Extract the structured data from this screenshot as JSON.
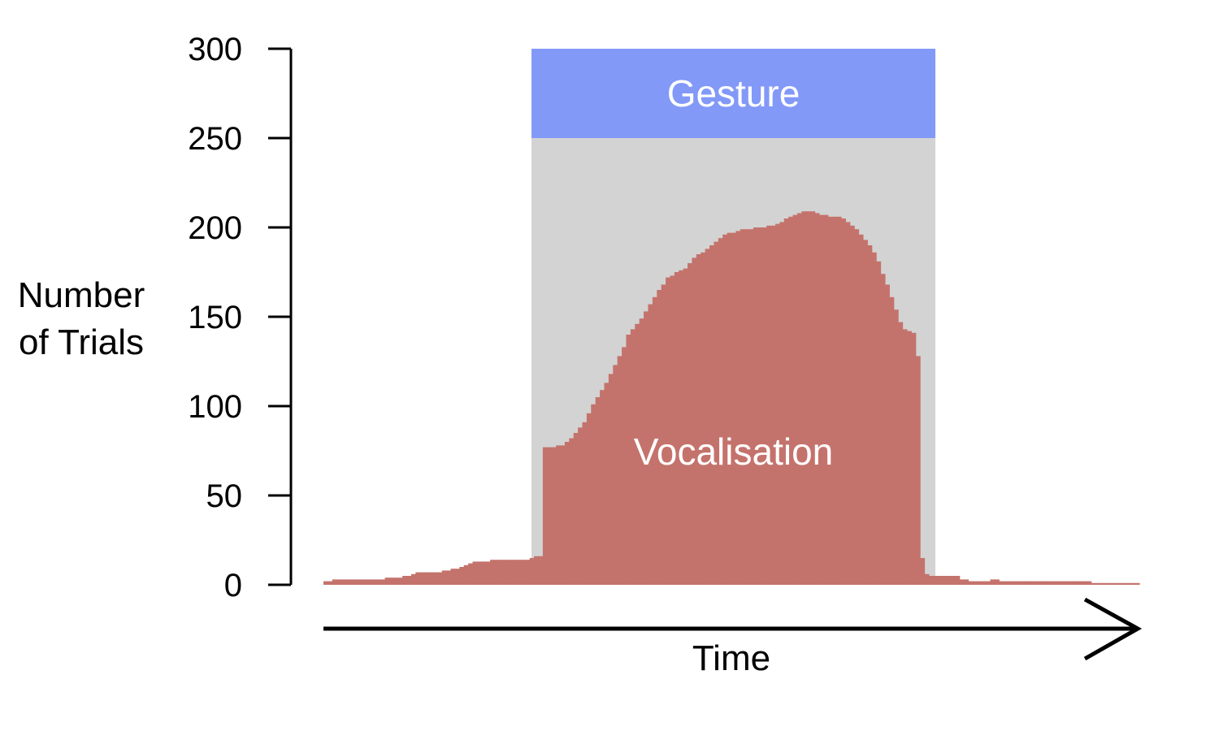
{
  "chart_data": {
    "type": "area",
    "ylabel": [
      "Number",
      "of Trials"
    ],
    "xlabel": "Time",
    "ylim": [
      0,
      300
    ],
    "yticks": [
      0,
      50,
      100,
      150,
      200,
      250,
      300
    ],
    "grid": false,
    "legend": "none",
    "regions": [
      {
        "name": "Gesture",
        "x_start": 0.255,
        "x_end": 0.75,
        "y_from": 250,
        "y_to": 300,
        "color": "#8299f8"
      },
      {
        "name": "",
        "x_start": 0.255,
        "x_end": 0.75,
        "y_from": 0,
        "y_to": 250,
        "color": "#d3d3d3"
      }
    ],
    "series": [
      {
        "name": "Vocalisation",
        "color": "#c4736c",
        "x_unit": "fraction of time window",
        "values": [
          2,
          2,
          3,
          3,
          3,
          3,
          3,
          3,
          3,
          3,
          3,
          3,
          3,
          3,
          4,
          4,
          4,
          4,
          5,
          5,
          6,
          7,
          7,
          7,
          7,
          7,
          7,
          8,
          8,
          9,
          9,
          10,
          11,
          12,
          13,
          13,
          13,
          13,
          14,
          14,
          14,
          14,
          14,
          14,
          14,
          14,
          14,
          15,
          16,
          16,
          77,
          77,
          77,
          78,
          78,
          80,
          82,
          85,
          88,
          91,
          96,
          101,
          105,
          109,
          113,
          118,
          123,
          128,
          133,
          140,
          143,
          146,
          149,
          153,
          157,
          161,
          165,
          168,
          172,
          173,
          175,
          176,
          177,
          180,
          183,
          185,
          186,
          188,
          190,
          192,
          194,
          196,
          197,
          197,
          198,
          199,
          199,
          199,
          200,
          200,
          200,
          201,
          201,
          202,
          203,
          205,
          206,
          207,
          208,
          209,
          209,
          209,
          208,
          207,
          207,
          206,
          206,
          206,
          205,
          203,
          201,
          199,
          196,
          193,
          190,
          186,
          181,
          174,
          168,
          161,
          154,
          147,
          143,
          142,
          141,
          128,
          15,
          6,
          5,
          5,
          5,
          5,
          5,
          5,
          5,
          3,
          3,
          2,
          2,
          2,
          2,
          2,
          3,
          3,
          2,
          2,
          2,
          2,
          2,
          2,
          2,
          2,
          2,
          2,
          2,
          2,
          2,
          2,
          2,
          2,
          2,
          2,
          2,
          2,
          2,
          1,
          1,
          1,
          1,
          1,
          1,
          1,
          1,
          1,
          1,
          1
        ]
      }
    ]
  }
}
